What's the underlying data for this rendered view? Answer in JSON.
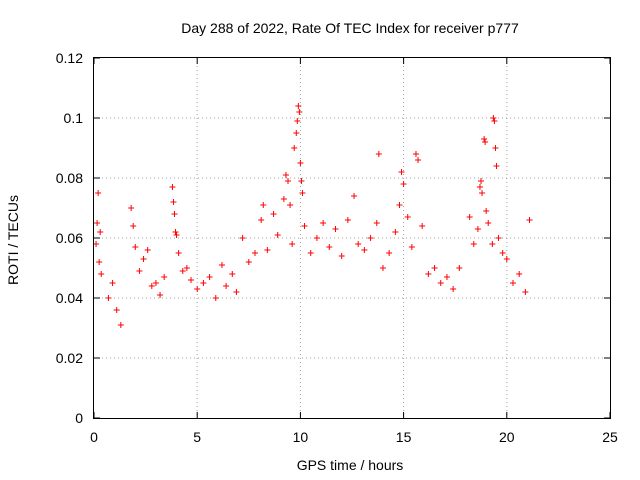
{
  "chart_data": {
    "type": "scatter",
    "title": "Day 288 of 2022, Rate Of TEC Index for receiver p777",
    "xlabel": "GPS time / hours",
    "ylabel": "ROTI / TECUs",
    "xlim": [
      0,
      25
    ],
    "ylim": [
      0,
      0.12
    ],
    "xticks": [
      "0",
      "5",
      "10",
      "15",
      "20",
      "25"
    ],
    "yticks": [
      "0",
      "0.02",
      "0.04",
      "0.06",
      "0.08",
      "0.1",
      "0.12"
    ],
    "xtick_values": [
      0,
      5,
      10,
      15,
      20,
      25
    ],
    "ytick_values": [
      0,
      0.02,
      0.04,
      0.06,
      0.08,
      0.1,
      0.12
    ],
    "grid": true,
    "marker": "+",
    "series": [
      {
        "color": "#ff0000",
        "points": [
          [
            0.1,
            0.058
          ],
          [
            0.15,
            0.065
          ],
          [
            0.2,
            0.075
          ],
          [
            0.25,
            0.052
          ],
          [
            0.3,
            0.062
          ],
          [
            0.35,
            0.048
          ],
          [
            0.7,
            0.04
          ],
          [
            0.9,
            0.045
          ],
          [
            1.1,
            0.036
          ],
          [
            1.3,
            0.031
          ],
          [
            1.8,
            0.07
          ],
          [
            1.9,
            0.064
          ],
          [
            2.0,
            0.057
          ],
          [
            2.2,
            0.049
          ],
          [
            2.4,
            0.053
          ],
          [
            2.6,
            0.056
          ],
          [
            2.8,
            0.044
          ],
          [
            3.0,
            0.045
          ],
          [
            3.2,
            0.041
          ],
          [
            3.4,
            0.047
          ],
          [
            3.8,
            0.077
          ],
          [
            3.85,
            0.072
          ],
          [
            3.9,
            0.068
          ],
          [
            3.95,
            0.062
          ],
          [
            4.0,
            0.061
          ],
          [
            4.1,
            0.055
          ],
          [
            4.3,
            0.049
          ],
          [
            4.5,
            0.05
          ],
          [
            4.7,
            0.046
          ],
          [
            5.0,
            0.043
          ],
          [
            5.3,
            0.045
          ],
          [
            5.6,
            0.047
          ],
          [
            5.9,
            0.04
          ],
          [
            6.2,
            0.051
          ],
          [
            6.4,
            0.044
          ],
          [
            6.7,
            0.048
          ],
          [
            6.9,
            0.042
          ],
          [
            7.2,
            0.06
          ],
          [
            7.5,
            0.052
          ],
          [
            7.8,
            0.055
          ],
          [
            8.1,
            0.066
          ],
          [
            8.2,
            0.071
          ],
          [
            8.4,
            0.056
          ],
          [
            8.7,
            0.068
          ],
          [
            8.9,
            0.061
          ],
          [
            9.2,
            0.073
          ],
          [
            9.3,
            0.081
          ],
          [
            9.4,
            0.079
          ],
          [
            9.5,
            0.071
          ],
          [
            9.6,
            0.058
          ],
          [
            9.7,
            0.09
          ],
          [
            9.8,
            0.095
          ],
          [
            9.85,
            0.099
          ],
          [
            9.9,
            0.104
          ],
          [
            9.95,
            0.102
          ],
          [
            10.0,
            0.085
          ],
          [
            10.05,
            0.079
          ],
          [
            10.1,
            0.075
          ],
          [
            10.2,
            0.064
          ],
          [
            10.5,
            0.055
          ],
          [
            10.8,
            0.06
          ],
          [
            11.1,
            0.065
          ],
          [
            11.4,
            0.057
          ],
          [
            11.7,
            0.063
          ],
          [
            12.0,
            0.054
          ],
          [
            12.3,
            0.066
          ],
          [
            12.6,
            0.074
          ],
          [
            12.8,
            0.058
          ],
          [
            13.1,
            0.056
          ],
          [
            13.4,
            0.06
          ],
          [
            13.7,
            0.065
          ],
          [
            13.8,
            0.088
          ],
          [
            14.0,
            0.05
          ],
          [
            14.3,
            0.055
          ],
          [
            14.6,
            0.062
          ],
          [
            14.8,
            0.071
          ],
          [
            14.9,
            0.082
          ],
          [
            15.0,
            0.078
          ],
          [
            15.2,
            0.067
          ],
          [
            15.4,
            0.057
          ],
          [
            15.6,
            0.088
          ],
          [
            15.7,
            0.086
          ],
          [
            15.9,
            0.064
          ],
          [
            16.2,
            0.048
          ],
          [
            16.5,
            0.05
          ],
          [
            16.8,
            0.045
          ],
          [
            17.1,
            0.047
          ],
          [
            17.4,
            0.043
          ],
          [
            17.7,
            0.05
          ],
          [
            18.2,
            0.067
          ],
          [
            18.4,
            0.058
          ],
          [
            18.6,
            0.063
          ],
          [
            18.7,
            0.077
          ],
          [
            18.75,
            0.079
          ],
          [
            18.8,
            0.075
          ],
          [
            18.9,
            0.093
          ],
          [
            18.95,
            0.092
          ],
          [
            19.0,
            0.069
          ],
          [
            19.1,
            0.065
          ],
          [
            19.3,
            0.058
          ],
          [
            19.35,
            0.1
          ],
          [
            19.4,
            0.099
          ],
          [
            19.45,
            0.09
          ],
          [
            19.5,
            0.084
          ],
          [
            19.6,
            0.06
          ],
          [
            19.8,
            0.055
          ],
          [
            20.0,
            0.053
          ],
          [
            20.3,
            0.045
          ],
          [
            20.6,
            0.048
          ],
          [
            20.9,
            0.042
          ],
          [
            21.1,
            0.066
          ]
        ]
      }
    ]
  }
}
